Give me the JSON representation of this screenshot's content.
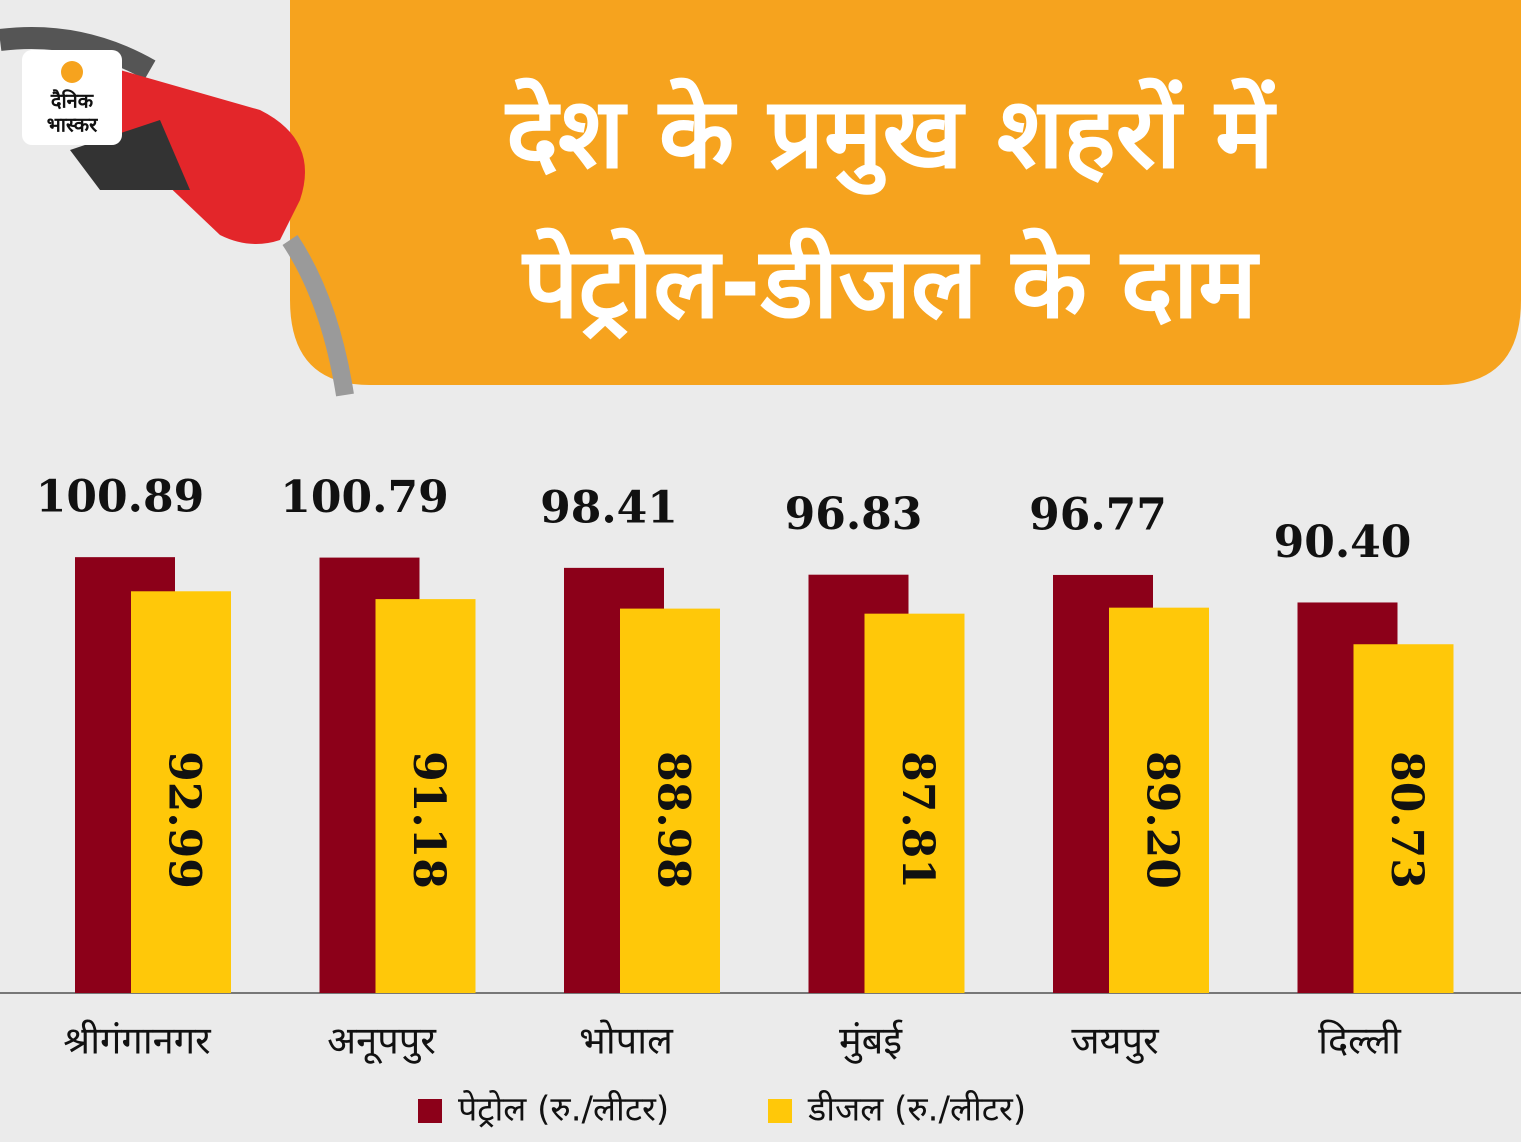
{
  "chart_data": {
    "type": "bar",
    "title": [
      "देश के प्रमुख शहरों में",
      "पेट्रोल-डीजल के दाम"
    ],
    "logo": [
      "दैनिक",
      "भास्कर"
    ],
    "categories": [
      "श्रीगंगानगर",
      "अनूपपुर",
      "भोपाल",
      "मुंबई",
      "जयपुर",
      "दिल्ली"
    ],
    "series": [
      {
        "name": "पेट्रोल (रु./लीटर)",
        "color": "#8c0019",
        "values": [
          100.89,
          100.79,
          98.41,
          96.83,
          96.77,
          90.4
        ],
        "value_labels": [
          "100.89",
          "100.79",
          "98.41",
          "96.83",
          "96.77",
          "90.40"
        ]
      },
      {
        "name": "डीजल  (रु./लीटर)",
        "color": "#ffc809",
        "values": [
          92.99,
          91.18,
          88.98,
          87.81,
          89.2,
          80.73
        ],
        "value_labels": [
          "92.99",
          "91.18",
          "88.98",
          "87.81",
          "89.20",
          "80.73"
        ]
      }
    ]
  }
}
